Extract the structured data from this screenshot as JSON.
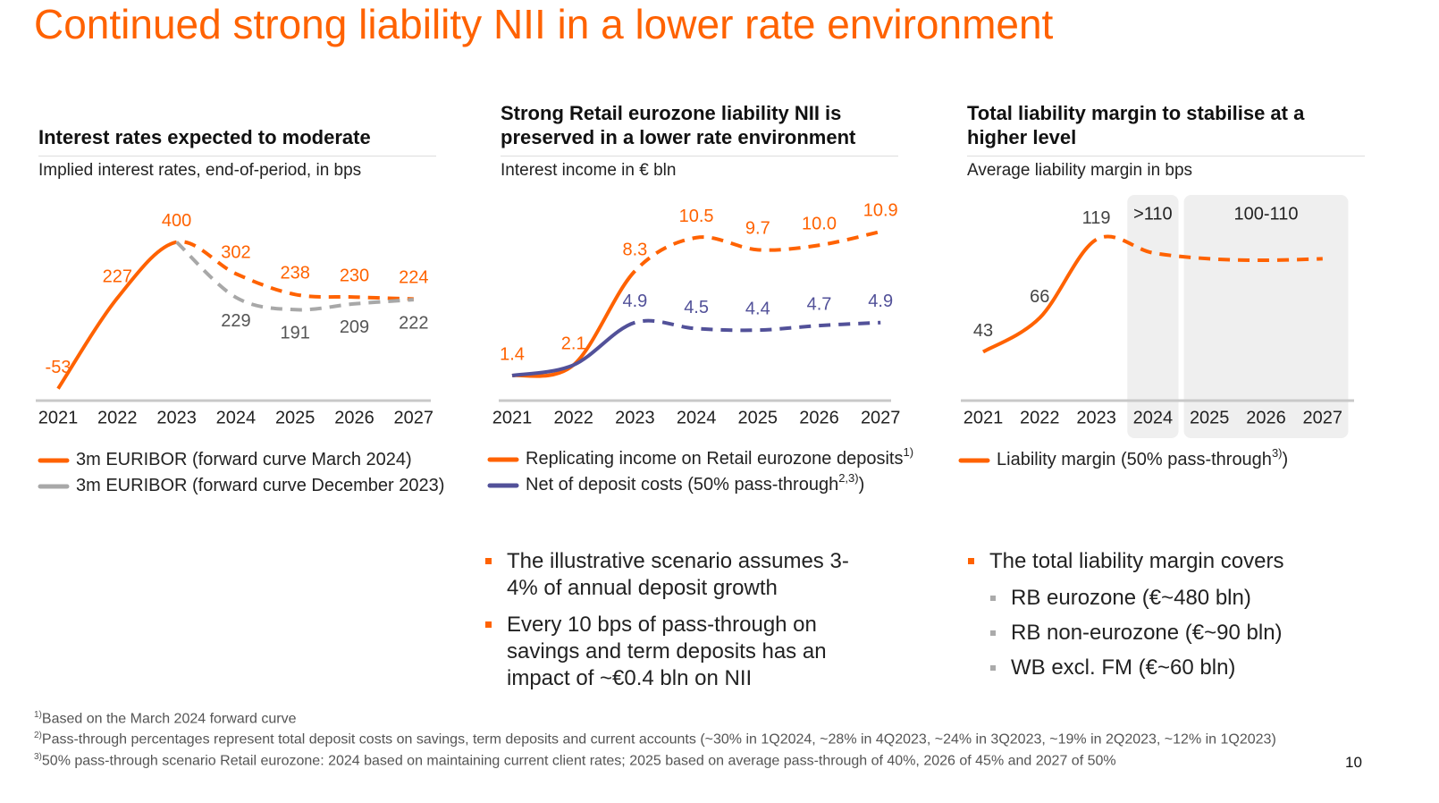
{
  "title": "Continued strong liability NII in a lower rate environment",
  "chart_data": [
    {
      "type": "line",
      "title": "Interest rates expected to moderate",
      "subtitle": "Implied interest rates, end-of-period, in bps",
      "categories": [
        "2021",
        "2022",
        "2023",
        "2024",
        "2025",
        "2026",
        "2027"
      ],
      "ylim": [
        -90,
        540
      ],
      "series": [
        {
          "name": "3m EURIBOR (forward curve March 2024)",
          "color": "#ff6200",
          "values": [
            -53,
            227,
            400,
            302,
            238,
            230,
            224
          ],
          "dashed_from": 2,
          "label_position": "above"
        },
        {
          "name": "3m EURIBOR (forward curve December 2023)",
          "color": "#a8a8a8",
          "label_color": "#555555",
          "values": [
            null,
            null,
            400,
            229,
            191,
            209,
            222
          ],
          "dashed_from": 2,
          "label_position": "below"
        }
      ]
    },
    {
      "type": "line",
      "title": "Strong Retail eurozone liability NII is preserved in a lower rate environment",
      "subtitle": "Interest income in € bln",
      "categories": [
        "2021",
        "2022",
        "2023",
        "2024",
        "2025",
        "2026",
        "2027"
      ],
      "ylim": [
        -0.25,
        13.2
      ],
      "series": [
        {
          "name": "Replicating income on Retail eurozone deposits",
          "note": "1)",
          "color": "#ff6200",
          "values": [
            1.4,
            2.1,
            8.3,
            10.5,
            9.7,
            10.0,
            10.9
          ],
          "value_labels": [
            "1.4",
            "2.1",
            "8.3",
            "10.5",
            "9.7",
            "10.0",
            "10.9"
          ],
          "dashed_from": 2,
          "label_position": "above"
        },
        {
          "name": "Net of deposit costs (50% pass-through",
          "note": "2,3)",
          "name_end": ")",
          "color": "#525199",
          "values": [
            1.4,
            2.1,
            4.9,
            4.5,
            4.4,
            4.7,
            4.9
          ],
          "dashed_from": 2,
          "label_position": "above"
        }
      ]
    },
    {
      "type": "line",
      "title": "Total liability margin to stabilise at a higher level",
      "subtitle": "Average liability margin in bps",
      "categories": [
        "2021",
        "2022",
        "2023",
        "2024",
        "2025",
        "2026",
        "2027"
      ],
      "ylim": [
        10,
        148
      ],
      "bands": [
        {
          "label": ">110",
          "from": 3,
          "to": 3
        },
        {
          "label": "100-110",
          "from": 4,
          "to": 6
        }
      ],
      "series": [
        {
          "name": "Liability margin (50% pass-through",
          "note": "3)",
          "name_end": ")",
          "color": "#ff6200",
          "values": [
            43,
            66,
            119,
            110,
            106,
            105,
            106
          ],
          "value_labels": [
            "43",
            "66",
            "119",
            null,
            null,
            null,
            null
          ],
          "dashed_from": 2,
          "label_position": "above",
          "label_color": "#444444"
        }
      ]
    }
  ],
  "bullets_middle": [
    "The illustrative scenario assumes 3-4% of annual deposit growth",
    "Every 10 bps of pass-through on savings and term deposits has an impact of ~€0.4 bln on NII"
  ],
  "bullets_right": {
    "text": "The total liability margin covers",
    "items": [
      "RB eurozone (€~480 bln)",
      "RB non-eurozone (€~90 bln)",
      "WB excl. FM (€~60 bln)"
    ]
  },
  "footnotes": [
    {
      "mark": "1)",
      "text": "Based on the March 2024 forward curve"
    },
    {
      "mark": "2)",
      "text": "Pass-through percentages represent total deposit costs on savings, term deposits and current accounts (~30% in 1Q2024, ~28% in 4Q2023, ~24% in 3Q2023, ~19% in 2Q2023, ~12% in 1Q2023)"
    },
    {
      "mark": "3)",
      "text": "50% pass-through scenario Retail eurozone: 2024 based on maintaining current client rates; 2025 based on average pass-through of 40%, 2026 of 45% and 2027 of 50%"
    }
  ],
  "page_number": 10
}
